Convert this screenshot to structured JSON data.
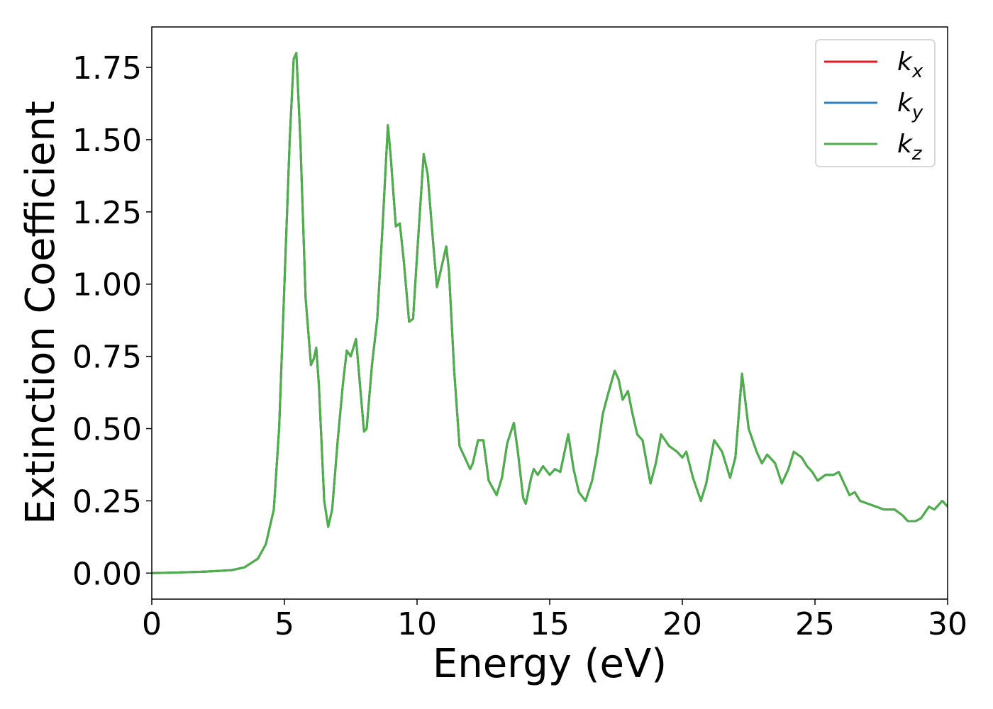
{
  "chart_data": {
    "type": "line",
    "x_label": "Energy (eV)",
    "y_label": "Extinction Coefficient",
    "x": [
      0,
      1,
      2,
      3,
      3.5,
      4,
      4.3,
      4.6,
      4.8,
      5,
      5.2,
      5.35,
      5.45,
      5.6,
      5.8,
      6,
      6.1,
      6.2,
      6.3,
      6.5,
      6.65,
      6.8,
      7,
      7.2,
      7.35,
      7.5,
      7.7,
      7.85,
      8,
      8.1,
      8.3,
      8.5,
      8.7,
      8.9,
      9,
      9.2,
      9.35,
      9.5,
      9.7,
      9.85,
      10,
      10.25,
      10.4,
      10.6,
      10.75,
      10.9,
      11.1,
      11.2,
      11.4,
      11.6,
      11.8,
      12,
      12.1,
      12.3,
      12.5,
      12.7,
      13,
      13.2,
      13.4,
      13.65,
      13.8,
      14,
      14.1,
      14.3,
      14.4,
      14.55,
      14.75,
      15,
      15.2,
      15.4,
      15.7,
      15.9,
      16.1,
      16.35,
      16.6,
      16.8,
      17,
      17.2,
      17.45,
      17.6,
      17.75,
      17.95,
      18.1,
      18.3,
      18.5,
      18.8,
      19,
      19.2,
      19.5,
      19.8,
      20,
      20.15,
      20.4,
      20.7,
      20.9,
      21.2,
      21.5,
      21.8,
      22,
      22.25,
      22.5,
      22.8,
      23,
      23.2,
      23.5,
      23.75,
      24,
      24.2,
      24.5,
      24.7,
      24.9,
      25.1,
      25.4,
      25.7,
      25.9,
      26.1,
      26.3,
      26.5,
      26.7,
      27,
      27.3,
      27.6,
      28,
      28.3,
      28.5,
      28.8,
      29,
      29.3,
      29.5,
      29.8,
      30
    ],
    "series": [
      {
        "name": "kx",
        "color": "#e41a1c",
        "values": [
          0,
          0.002,
          0.005,
          0.01,
          0.02,
          0.05,
          0.1,
          0.22,
          0.5,
          1.0,
          1.5,
          1.78,
          1.8,
          1.5,
          0.95,
          0.72,
          0.74,
          0.78,
          0.65,
          0.25,
          0.16,
          0.22,
          0.45,
          0.65,
          0.77,
          0.75,
          0.81,
          0.65,
          0.49,
          0.5,
          0.72,
          0.88,
          1.2,
          1.55,
          1.45,
          1.2,
          1.21,
          1.08,
          0.87,
          0.88,
          1.1,
          1.45,
          1.38,
          1.15,
          0.99,
          1.05,
          1.13,
          1.05,
          0.7,
          0.44,
          0.4,
          0.36,
          0.38,
          0.46,
          0.46,
          0.32,
          0.27,
          0.33,
          0.45,
          0.52,
          0.42,
          0.26,
          0.24,
          0.33,
          0.36,
          0.34,
          0.37,
          0.34,
          0.36,
          0.35,
          0.48,
          0.36,
          0.28,
          0.25,
          0.32,
          0.42,
          0.55,
          0.62,
          0.7,
          0.67,
          0.6,
          0.63,
          0.56,
          0.48,
          0.46,
          0.31,
          0.38,
          0.48,
          0.44,
          0.42,
          0.4,
          0.42,
          0.33,
          0.25,
          0.31,
          0.46,
          0.42,
          0.33,
          0.4,
          0.69,
          0.5,
          0.42,
          0.38,
          0.41,
          0.38,
          0.31,
          0.36,
          0.42,
          0.4,
          0.37,
          0.35,
          0.32,
          0.34,
          0.34,
          0.35,
          0.31,
          0.27,
          0.28,
          0.25,
          0.24,
          0.23,
          0.22,
          0.22,
          0.2,
          0.18,
          0.18,
          0.19,
          0.23,
          0.22,
          0.25,
          0.23
        ]
      },
      {
        "name": "ky",
        "color": "#377eb8",
        "values": [
          0,
          0.002,
          0.005,
          0.01,
          0.02,
          0.05,
          0.1,
          0.22,
          0.5,
          1.0,
          1.5,
          1.78,
          1.8,
          1.5,
          0.95,
          0.72,
          0.74,
          0.78,
          0.65,
          0.25,
          0.16,
          0.22,
          0.45,
          0.65,
          0.77,
          0.75,
          0.81,
          0.65,
          0.49,
          0.5,
          0.72,
          0.88,
          1.2,
          1.55,
          1.45,
          1.2,
          1.21,
          1.08,
          0.87,
          0.88,
          1.1,
          1.45,
          1.38,
          1.15,
          0.99,
          1.05,
          1.13,
          1.05,
          0.7,
          0.44,
          0.4,
          0.36,
          0.38,
          0.46,
          0.46,
          0.32,
          0.27,
          0.33,
          0.45,
          0.52,
          0.42,
          0.26,
          0.24,
          0.33,
          0.36,
          0.34,
          0.37,
          0.34,
          0.36,
          0.35,
          0.48,
          0.36,
          0.28,
          0.25,
          0.32,
          0.42,
          0.55,
          0.62,
          0.7,
          0.67,
          0.6,
          0.63,
          0.56,
          0.48,
          0.46,
          0.31,
          0.38,
          0.48,
          0.44,
          0.42,
          0.4,
          0.42,
          0.33,
          0.25,
          0.31,
          0.46,
          0.42,
          0.33,
          0.4,
          0.69,
          0.5,
          0.42,
          0.38,
          0.41,
          0.38,
          0.31,
          0.36,
          0.42,
          0.4,
          0.37,
          0.35,
          0.32,
          0.34,
          0.34,
          0.35,
          0.31,
          0.27,
          0.28,
          0.25,
          0.24,
          0.23,
          0.22,
          0.22,
          0.2,
          0.18,
          0.18,
          0.19,
          0.23,
          0.22,
          0.25,
          0.23
        ]
      },
      {
        "name": "kz",
        "color": "#4daf4a",
        "values": [
          0,
          0.002,
          0.005,
          0.01,
          0.02,
          0.05,
          0.1,
          0.22,
          0.5,
          1.0,
          1.5,
          1.78,
          1.8,
          1.5,
          0.95,
          0.72,
          0.74,
          0.78,
          0.65,
          0.25,
          0.16,
          0.22,
          0.45,
          0.65,
          0.77,
          0.75,
          0.81,
          0.65,
          0.49,
          0.5,
          0.72,
          0.88,
          1.2,
          1.55,
          1.45,
          1.2,
          1.21,
          1.08,
          0.87,
          0.88,
          1.1,
          1.45,
          1.38,
          1.15,
          0.99,
          1.05,
          1.13,
          1.05,
          0.7,
          0.44,
          0.4,
          0.36,
          0.38,
          0.46,
          0.46,
          0.32,
          0.27,
          0.33,
          0.45,
          0.52,
          0.42,
          0.26,
          0.24,
          0.33,
          0.36,
          0.34,
          0.37,
          0.34,
          0.36,
          0.35,
          0.48,
          0.36,
          0.28,
          0.25,
          0.32,
          0.42,
          0.55,
          0.62,
          0.7,
          0.67,
          0.6,
          0.63,
          0.56,
          0.48,
          0.46,
          0.31,
          0.38,
          0.48,
          0.44,
          0.42,
          0.4,
          0.42,
          0.33,
          0.25,
          0.31,
          0.46,
          0.42,
          0.33,
          0.4,
          0.69,
          0.5,
          0.42,
          0.38,
          0.41,
          0.38,
          0.31,
          0.36,
          0.42,
          0.4,
          0.37,
          0.35,
          0.32,
          0.34,
          0.34,
          0.35,
          0.31,
          0.27,
          0.28,
          0.25,
          0.24,
          0.23,
          0.22,
          0.22,
          0.2,
          0.18,
          0.18,
          0.19,
          0.23,
          0.22,
          0.25,
          0.23
        ]
      }
    ],
    "xlim": [
      0,
      30
    ],
    "xticks": [
      0,
      5,
      10,
      15,
      20,
      25,
      30
    ],
    "ylim": [
      -0.09,
      1.89
    ],
    "yticks": [
      {
        "value": 0,
        "label": "0.00"
      },
      {
        "value": 0.25,
        "label": "0.25"
      },
      {
        "value": 0.5,
        "label": "0.50"
      },
      {
        "value": 0.75,
        "label": "0.75"
      },
      {
        "value": 1,
        "label": "1.00"
      },
      {
        "value": 1.25,
        "label": "1.25"
      },
      {
        "value": 1.5,
        "label": "1.50"
      },
      {
        "value": 1.75,
        "label": "1.75"
      }
    ],
    "grid": false,
    "legend": "upper right"
  }
}
